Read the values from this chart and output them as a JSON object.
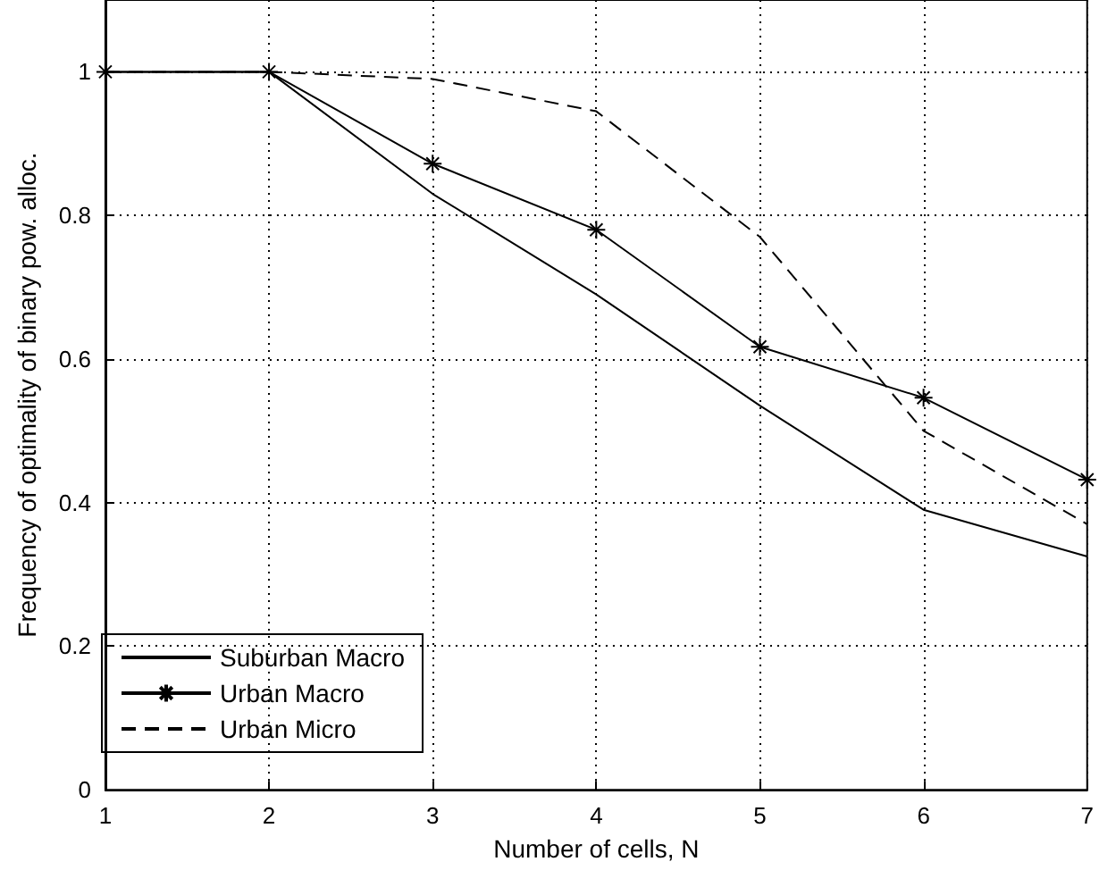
{
  "chart_data": {
    "type": "line",
    "xlabel": "Number of cells, N",
    "ylabel": "Frequency of optimality of binary pow. alloc.",
    "x": [
      1,
      2,
      3,
      4,
      5,
      6,
      7
    ],
    "series": [
      {
        "name": "Suburban Macro",
        "color": "#000000",
        "marker": "none",
        "line_style": "solid",
        "values": [
          1,
          1,
          0.83,
          0.69,
          0.535,
          0.39,
          0.325
        ]
      },
      {
        "name": "Urban Macro",
        "color": "#000000",
        "marker": "cross",
        "line_style": "solid",
        "values": [
          1,
          1,
          0.872,
          0.78,
          0.617,
          0.546,
          0.432
        ]
      },
      {
        "name": "Urban Micro",
        "color": "#000000",
        "marker": "none",
        "line_style": "dashed",
        "values": [
          1,
          1,
          0.99,
          0.945,
          0.77,
          0.5,
          0.37
        ]
      }
    ],
    "xlim": [
      1,
      7
    ],
    "xticks": [
      1,
      2,
      3,
      4,
      5,
      6,
      7
    ],
    "ylim": [
      0,
      1.1
    ],
    "yticks": [
      0,
      0.2,
      0.4,
      0.6,
      0.8,
      1
    ],
    "grid": true,
    "legend": "bottom left"
  }
}
